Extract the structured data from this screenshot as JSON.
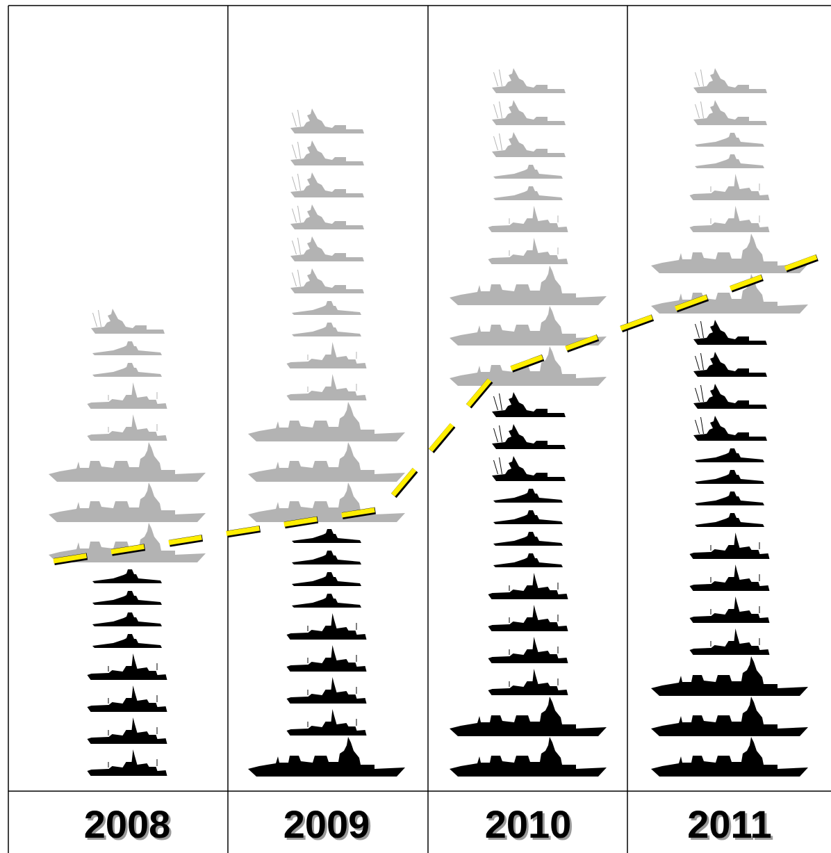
{
  "columns": [
    {
      "year": "2008"
    },
    {
      "year": "2009"
    },
    {
      "year": "2010"
    },
    {
      "year": "2011"
    }
  ]
}
